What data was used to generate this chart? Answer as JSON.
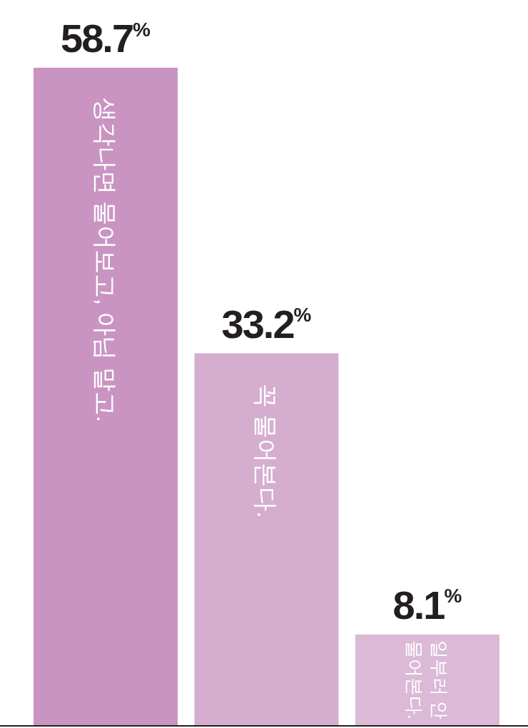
{
  "chart_data": {
    "type": "bar",
    "categories": [
      "생각나면 물어보고, 아님 말고.",
      "꼭 물어본다.",
      "일부러 안\n물어본다."
    ],
    "values": [
      58.7,
      33.2,
      8.1
    ],
    "colors": [
      "#c994c2",
      "#d5aecf",
      "#dbb9d7"
    ],
    "value_labels": [
      "58.7$^{%}$",
      "33.2$^{%}$",
      "8.1$^{%}$"
    ]
  }
}
